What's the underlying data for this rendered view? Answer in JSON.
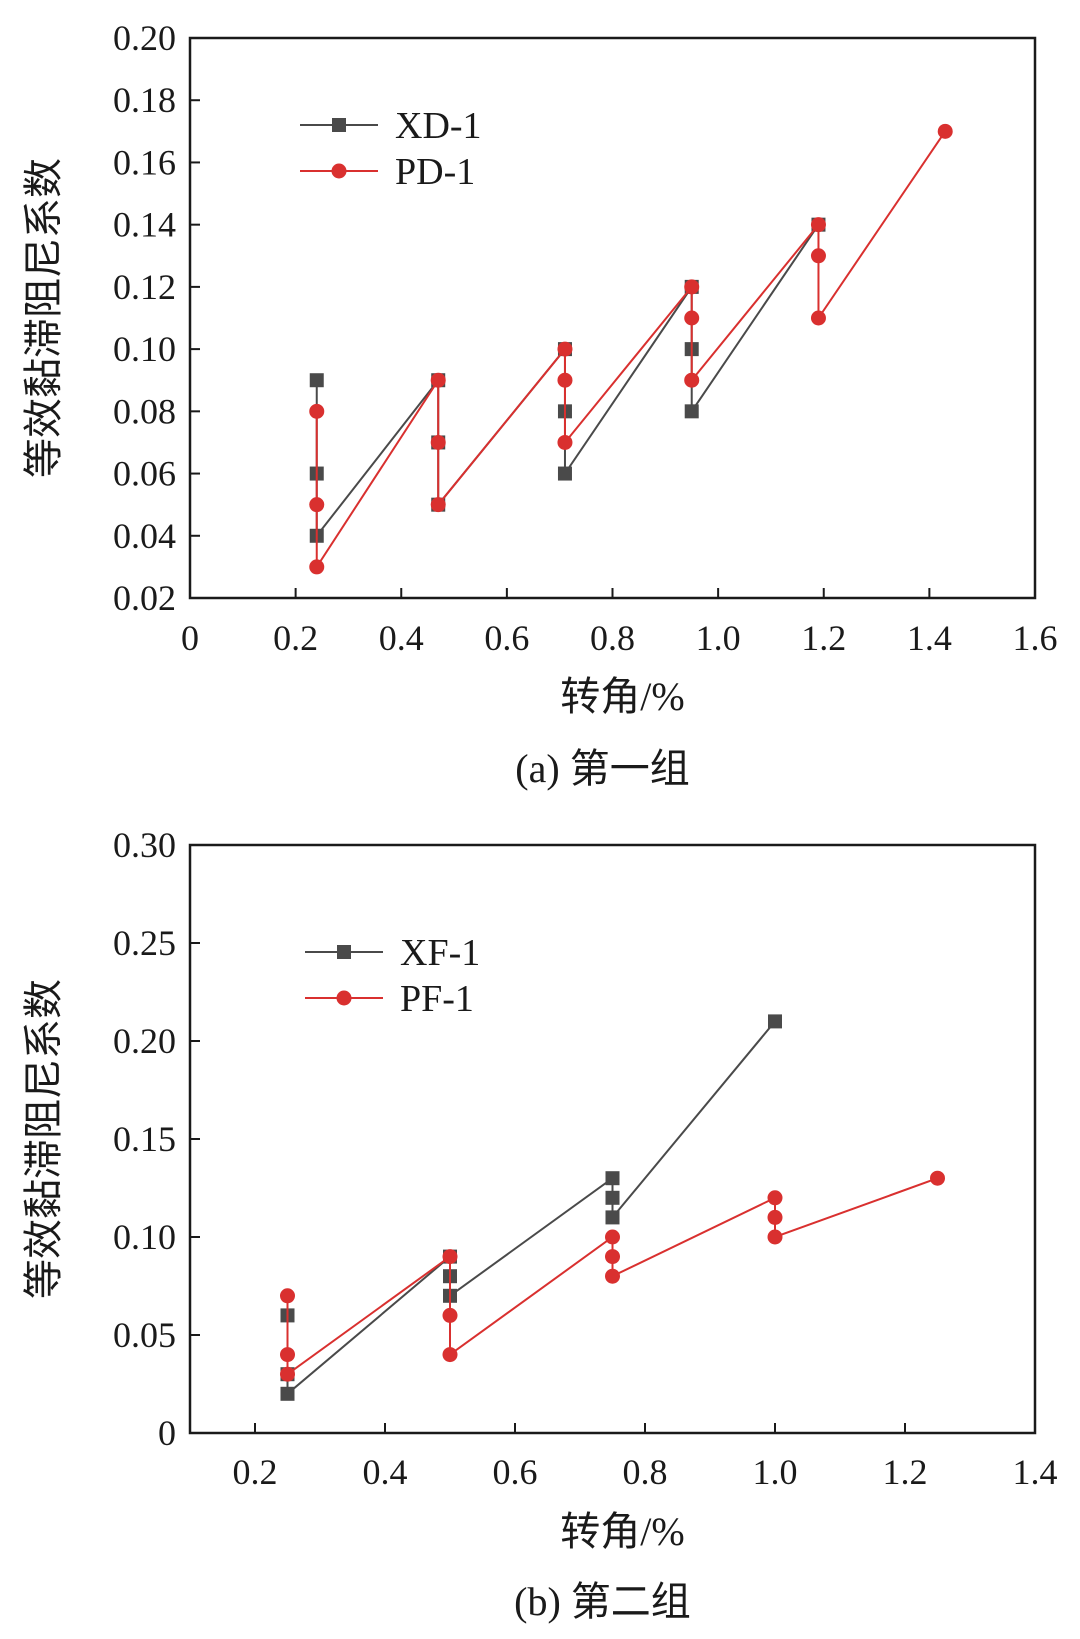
{
  "chart_data": [
    {
      "type": "line",
      "caption": "(a) 第一组",
      "xlabel": "转角/%",
      "ylabel": "等效黏滞阻尼系数",
      "xlim": [
        0,
        1.6
      ],
      "ylim": [
        0.02,
        0.2
      ],
      "xticks": [
        "0",
        "0.2",
        "0.4",
        "0.6",
        "0.8",
        "1.0",
        "1.2",
        "1.4",
        "1.6"
      ],
      "yticks": [
        "0.02",
        "0.04",
        "0.06",
        "0.08",
        "0.10",
        "0.12",
        "0.14",
        "0.16",
        "0.18",
        "0.20"
      ],
      "legend_position": "top-left",
      "series": [
        {
          "name": "XD-1",
          "color": "#4a4a4a",
          "marker": "square",
          "points": [
            [
              0.24,
              0.09
            ],
            [
              0.24,
              0.06
            ],
            [
              0.24,
              0.04
            ],
            [
              0.47,
              0.09
            ],
            [
              0.47,
              0.07
            ],
            [
              0.47,
              0.05
            ],
            [
              0.71,
              0.1
            ],
            [
              0.71,
              0.08
            ],
            [
              0.71,
              0.06
            ],
            [
              0.95,
              0.12
            ],
            [
              0.95,
              0.1
            ],
            [
              0.95,
              0.08
            ],
            [
              1.19,
              0.14
            ]
          ]
        },
        {
          "name": "PD-1",
          "color": "#d9302f",
          "marker": "circle",
          "points": [
            [
              0.24,
              0.08
            ],
            [
              0.24,
              0.05
            ],
            [
              0.24,
              0.03
            ],
            [
              0.47,
              0.09
            ],
            [
              0.47,
              0.07
            ],
            [
              0.47,
              0.05
            ],
            [
              0.71,
              0.1
            ],
            [
              0.71,
              0.09
            ],
            [
              0.71,
              0.07
            ],
            [
              0.95,
              0.12
            ],
            [
              0.95,
              0.11
            ],
            [
              0.95,
              0.09
            ],
            [
              1.19,
              0.14
            ],
            [
              1.19,
              0.13
            ],
            [
              1.19,
              0.11
            ],
            [
              1.43,
              0.17
            ]
          ]
        }
      ]
    },
    {
      "type": "line",
      "caption": "(b) 第二组",
      "xlabel": "转角/%",
      "ylabel": "等效黏滞阻尼系数",
      "xlim": [
        0.1,
        1.4
      ],
      "ylim": [
        0,
        0.3
      ],
      "xticks": [
        "0.2",
        "0.4",
        "0.6",
        "0.8",
        "1.0",
        "1.2",
        "1.4"
      ],
      "yticks": [
        "0",
        "0.05",
        "0.10",
        "0.15",
        "0.20",
        "0.25",
        "0.30"
      ],
      "legend_position": "top-left",
      "series": [
        {
          "name": "XF-1",
          "color": "#4a4a4a",
          "marker": "square",
          "points": [
            [
              0.25,
              0.06
            ],
            [
              0.25,
              0.03
            ],
            [
              0.25,
              0.02
            ],
            [
              0.5,
              0.09
            ],
            [
              0.5,
              0.08
            ],
            [
              0.5,
              0.07
            ],
            [
              0.75,
              0.13
            ],
            [
              0.75,
              0.12
            ],
            [
              0.75,
              0.11
            ],
            [
              1.0,
              0.21
            ]
          ]
        },
        {
          "name": "PF-1",
          "color": "#d9302f",
          "marker": "circle",
          "points": [
            [
              0.25,
              0.07
            ],
            [
              0.25,
              0.04
            ],
            [
              0.25,
              0.03
            ],
            [
              0.5,
              0.09
            ],
            [
              0.5,
              0.06
            ],
            [
              0.5,
              0.04
            ],
            [
              0.75,
              0.1
            ],
            [
              0.75,
              0.09
            ],
            [
              0.75,
              0.08
            ],
            [
              1.0,
              0.12
            ],
            [
              1.0,
              0.11
            ],
            [
              1.0,
              0.1
            ],
            [
              1.25,
              0.13
            ]
          ]
        }
      ]
    }
  ]
}
